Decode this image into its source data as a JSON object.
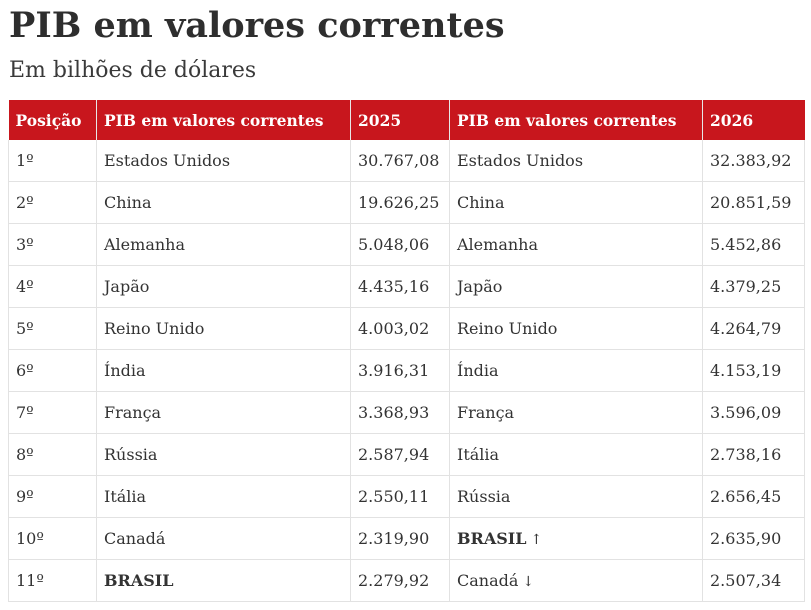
{
  "title": "PIB em valores correntes",
  "subtitle": "Em bilhões de dólares",
  "table": {
    "headers": [
      "Posição",
      "PIB em valores correntes",
      "2025",
      "PIB em valores correntes",
      "2026"
    ],
    "rows": [
      {
        "pos": "1º",
        "country_2025": "Estados Unidos",
        "value_2025": "30.767,08",
        "country_2026": "Estados Unidos",
        "value_2026": "32.383,92"
      },
      {
        "pos": "2º",
        "country_2025": "China",
        "value_2025": "19.626,25",
        "country_2026": "China",
        "value_2026": "20.851,59"
      },
      {
        "pos": "3º",
        "country_2025": "Alemanha",
        "value_2025": "5.048,06",
        "country_2026": "Alemanha",
        "value_2026": "5.452,86"
      },
      {
        "pos": "4º",
        "country_2025": "Japão",
        "value_2025": "4.435,16",
        "country_2026": "Japão",
        "value_2026": "4.379,25"
      },
      {
        "pos": "5º",
        "country_2025": "Reino Unido",
        "value_2025": "4.003,02",
        "country_2026": "Reino Unido",
        "value_2026": "4.264,79"
      },
      {
        "pos": "6º",
        "country_2025": "Índia",
        "value_2025": "3.916,31",
        "country_2026": "Índia",
        "value_2026": "4.153,19"
      },
      {
        "pos": "7º",
        "country_2025": "França",
        "value_2025": "3.368,93",
        "country_2026": "França",
        "value_2026": "3.596,09"
      },
      {
        "pos": "8º",
        "country_2025": "Rússia",
        "value_2025": "2.587,94",
        "country_2026": "Itália",
        "value_2026": "2.738,16"
      },
      {
        "pos": "9º",
        "country_2025": "Itália",
        "value_2025": "2.550,11",
        "country_2026": "Rússia",
        "value_2026": "2.656,45"
      },
      {
        "pos": "10º",
        "country_2025": "Canadá",
        "value_2025": "2.319,90",
        "country_2026": "BRASIL",
        "country_2026_arrow": "↑",
        "value_2026": "2.635,90"
      },
      {
        "pos": "11º",
        "country_2025": "BRASIL",
        "value_2025": "2.279,92",
        "country_2026": "Canadá",
        "country_2026_arrow": "↓",
        "value_2026": "2.507,34"
      }
    ]
  },
  "colors": {
    "header_bg": "#c8161d",
    "header_text": "#ffffff"
  },
  "icons": {
    "up": "arrow-up-icon",
    "down": "arrow-down-icon"
  }
}
